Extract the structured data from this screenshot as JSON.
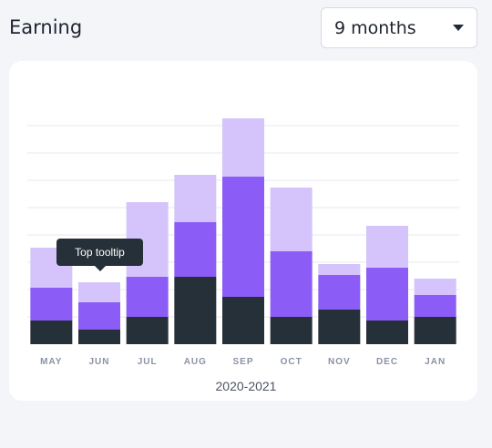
{
  "header": {
    "title": "Earning"
  },
  "filter": {
    "selected": "9 months",
    "icon": "caret-down-icon"
  },
  "tooltip": {
    "text": "Top tooltip"
  },
  "colors": {
    "bottom": "#263038",
    "middle": "#8b5cf6",
    "top": "#d4c4fb",
    "grid": "#e8e8ee",
    "label": "#8a93a3"
  },
  "chart_data": {
    "type": "bar",
    "stacked": true,
    "categories": [
      "MAY",
      "JUN",
      "JUL",
      "AUG",
      "SEP",
      "OCT",
      "NOV",
      "DEC",
      "JAN"
    ],
    "series": [
      {
        "values": [
          13,
          8,
          15,
          37,
          26,
          15,
          19,
          13,
          15
        ]
      },
      {
        "values": [
          18,
          15,
          22,
          30,
          66,
          36,
          19,
          29,
          12
        ]
      },
      {
        "values": [
          22,
          11,
          41,
          26,
          32,
          35,
          6,
          23,
          9
        ]
      }
    ],
    "xlabel": "2020-2021",
    "ylabel": "",
    "ylim": [
      0,
      130
    ],
    "grid": true,
    "legend": "none"
  }
}
